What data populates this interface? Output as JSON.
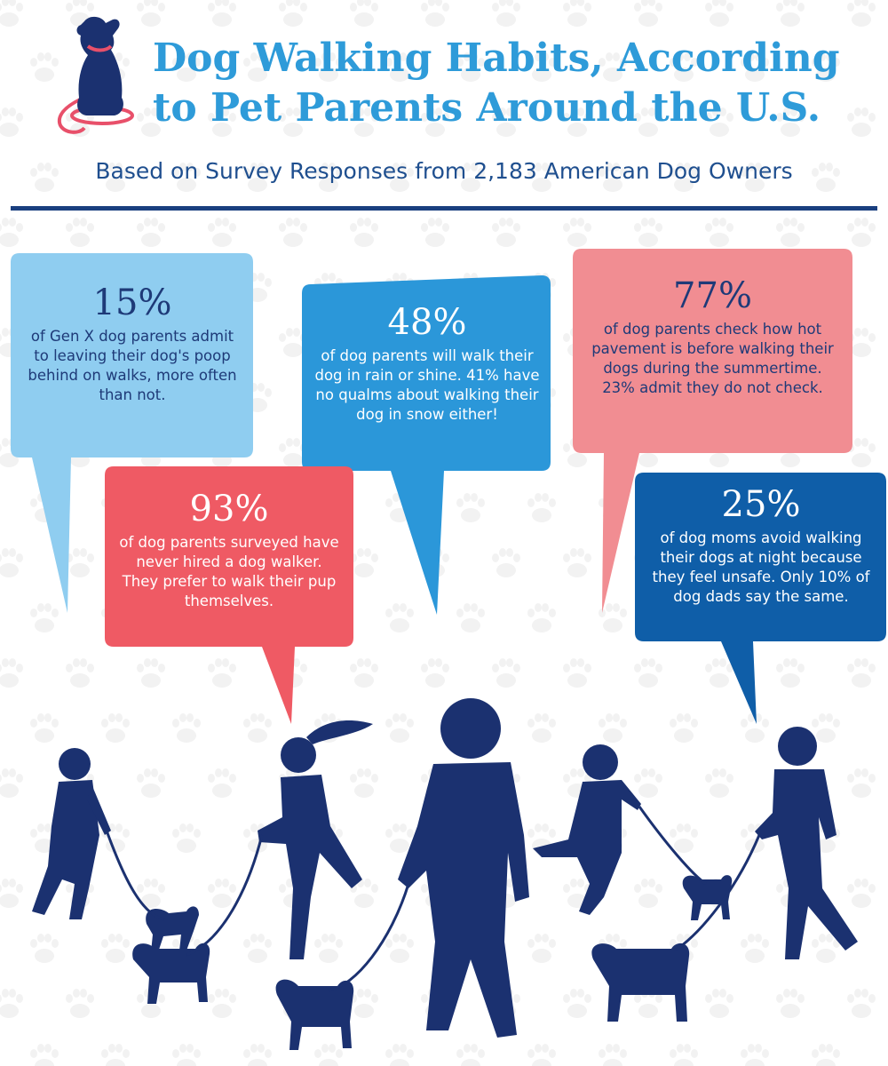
{
  "header": {
    "title_line1": "Dog Walking Habits, According",
    "title_line2": "to Pet Parents Around the U.S.",
    "subtitle": "Based on Survey Responses from 2,183 American Dog Owners"
  },
  "stats": [
    {
      "value": "15%",
      "text": "of Gen X dog parents admit to leaving their dog's poop behind on walks, more often than not."
    },
    {
      "value": "48%",
      "text": "of dog parents will walk their dog in rain or shine. 41% have no qualms about walking their dog in snow either!"
    },
    {
      "value": "77%",
      "text": "of dog parents check how hot pavement is before walking their dogs during the summertime. 23% admit they do not check."
    },
    {
      "value": "93%",
      "text": "of dog parents surveyed have never hired a dog walker. They prefer to walk their pup themselves."
    },
    {
      "value": "25%",
      "text": "of dog moms avoid walking their dogs at night because they feel unsafe. Only 10% of dog dads say the same."
    }
  ],
  "colors": {
    "light_blue": "#8fcdf0",
    "mid_blue": "#2b97d9",
    "salmon": "#f18d92",
    "red": "#ef5a64",
    "dark_blue": "#0f5ea8",
    "navy": "#1b3170",
    "title": "#2e9bd9",
    "paw": "#f2f2f2",
    "leash": "#e8506a"
  },
  "icons": {
    "logo": "sitting-dog-with-leash-icon",
    "background": "paw-print-icon"
  }
}
